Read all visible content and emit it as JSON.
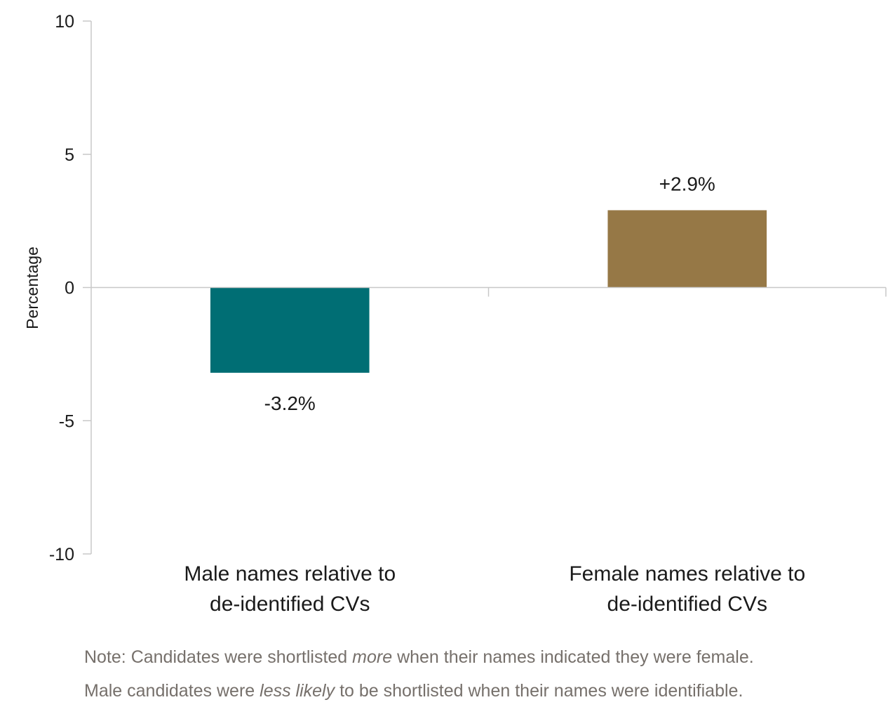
{
  "chart_data": {
    "type": "bar",
    "categories": [
      [
        "Male names relative to",
        "de-identified CVs"
      ],
      [
        "Female names relative to",
        "de-identified CVs"
      ]
    ],
    "values": [
      -3.2,
      2.9
    ],
    "data_labels": [
      "-3.2%",
      "+2.9%"
    ],
    "colors": [
      "#006e74",
      "#967846"
    ],
    "ylabel": "Percentage",
    "ylim": [
      -10,
      10
    ],
    "yticks": [
      10,
      5,
      0,
      -5,
      -10
    ],
    "ytick_labels": [
      "10",
      "5",
      "0",
      "-5",
      "-10"
    ],
    "grid": false,
    "legend": "none"
  },
  "note": {
    "line1": {
      "before": "Note: Candidates were shortlisted ",
      "emphasis": "more",
      "after": " when their names indicated they were female."
    },
    "line2": {
      "before": "Male candidates were ",
      "emphasis": "less likely",
      "after": " to be shortlisted when their names were identifiable."
    }
  }
}
